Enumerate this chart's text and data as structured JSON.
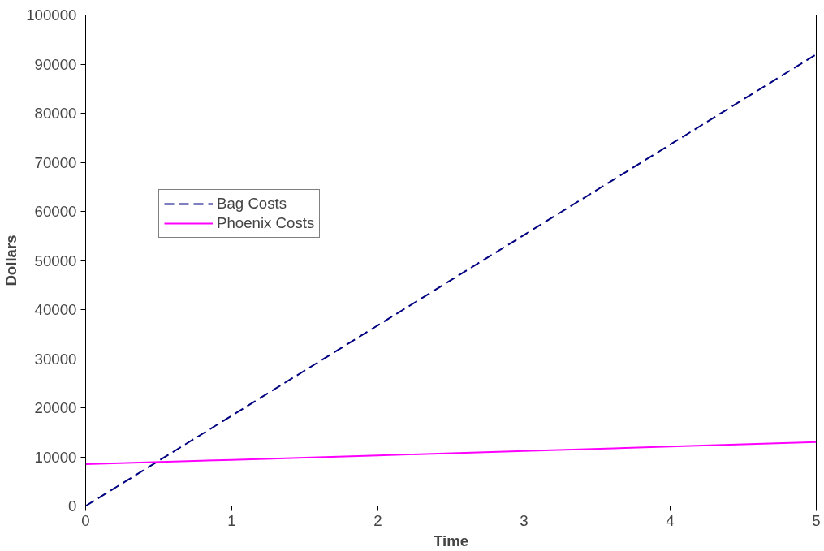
{
  "chart_data": {
    "type": "line",
    "xlabel": "Time",
    "ylabel": "Dollars",
    "x": [
      0,
      1,
      2,
      3,
      4,
      5
    ],
    "series": [
      {
        "name": "Bag Costs",
        "color": "#000080",
        "line_style": "dashed",
        "values": [
          0,
          18400,
          36800,
          55200,
          73600,
          92000
        ]
      },
      {
        "name": "Phoenix Costs",
        "color": "#ff00ff",
        "line_style": "solid",
        "values": [
          8500,
          9400,
          10300,
          11200,
          12100,
          13000
        ]
      }
    ],
    "xlim": [
      0,
      5
    ],
    "xticks": [
      0,
      1,
      2,
      3,
      4,
      5
    ],
    "ylim": [
      0,
      100000
    ],
    "yticks": [
      0,
      10000,
      20000,
      30000,
      40000,
      50000,
      60000,
      70000,
      80000,
      90000,
      100000
    ],
    "grid": false,
    "legend": "top left",
    "marker": "none"
  }
}
